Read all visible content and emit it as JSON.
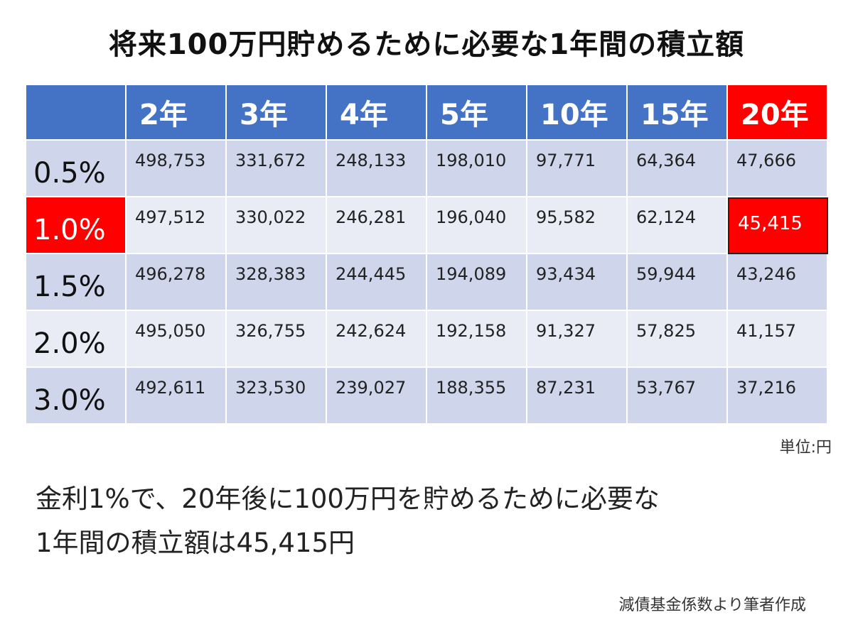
{
  "title": "将来100万円貯めるために必要な1年間の積立額",
  "chart_data": {
    "type": "table",
    "title": "将来100万円貯めるために必要な1年間の積立額",
    "columns": [
      "2年",
      "3年",
      "4年",
      "5年",
      "10年",
      "15年",
      "20年"
    ],
    "rows": [
      {
        "label": "0.5%",
        "values": [
          "498,753",
          "331,672",
          "248,133",
          "198,010",
          "97,771",
          "64,364",
          "47,666"
        ]
      },
      {
        "label": "1.0%",
        "values": [
          "497,512",
          "330,022",
          "246,281",
          "196,040",
          "95,582",
          "62,124",
          "45,415"
        ]
      },
      {
        "label": "1.5%",
        "values": [
          "496,278",
          "328,383",
          "244,445",
          "194,089",
          "93,434",
          "59,944",
          "43,246"
        ]
      },
      {
        "label": "2.0%",
        "values": [
          "495,050",
          "326,755",
          "242,624",
          "192,158",
          "91,327",
          "57,825",
          "41,157"
        ]
      },
      {
        "label": "3.0%",
        "values": [
          "492,611",
          "323,530",
          "239,027",
          "188,355",
          "87,231",
          "53,767",
          "37,216"
        ]
      }
    ],
    "highlight": {
      "row": "1.0%",
      "column": "20年",
      "value": "45,415",
      "color": "#ff0000"
    },
    "colors": {
      "header": "#4472c4",
      "row_dark": "#cfd5ea",
      "row_light": "#e9ebf5",
      "highlight": "#ff0000"
    }
  },
  "unit": "単位:円",
  "caption_line1": "金利1%で、20年後に100万円を貯めるために必要な",
  "caption_line2": "1年間の積立額は45,415円",
  "source": "減債基金係数より筆者作成"
}
